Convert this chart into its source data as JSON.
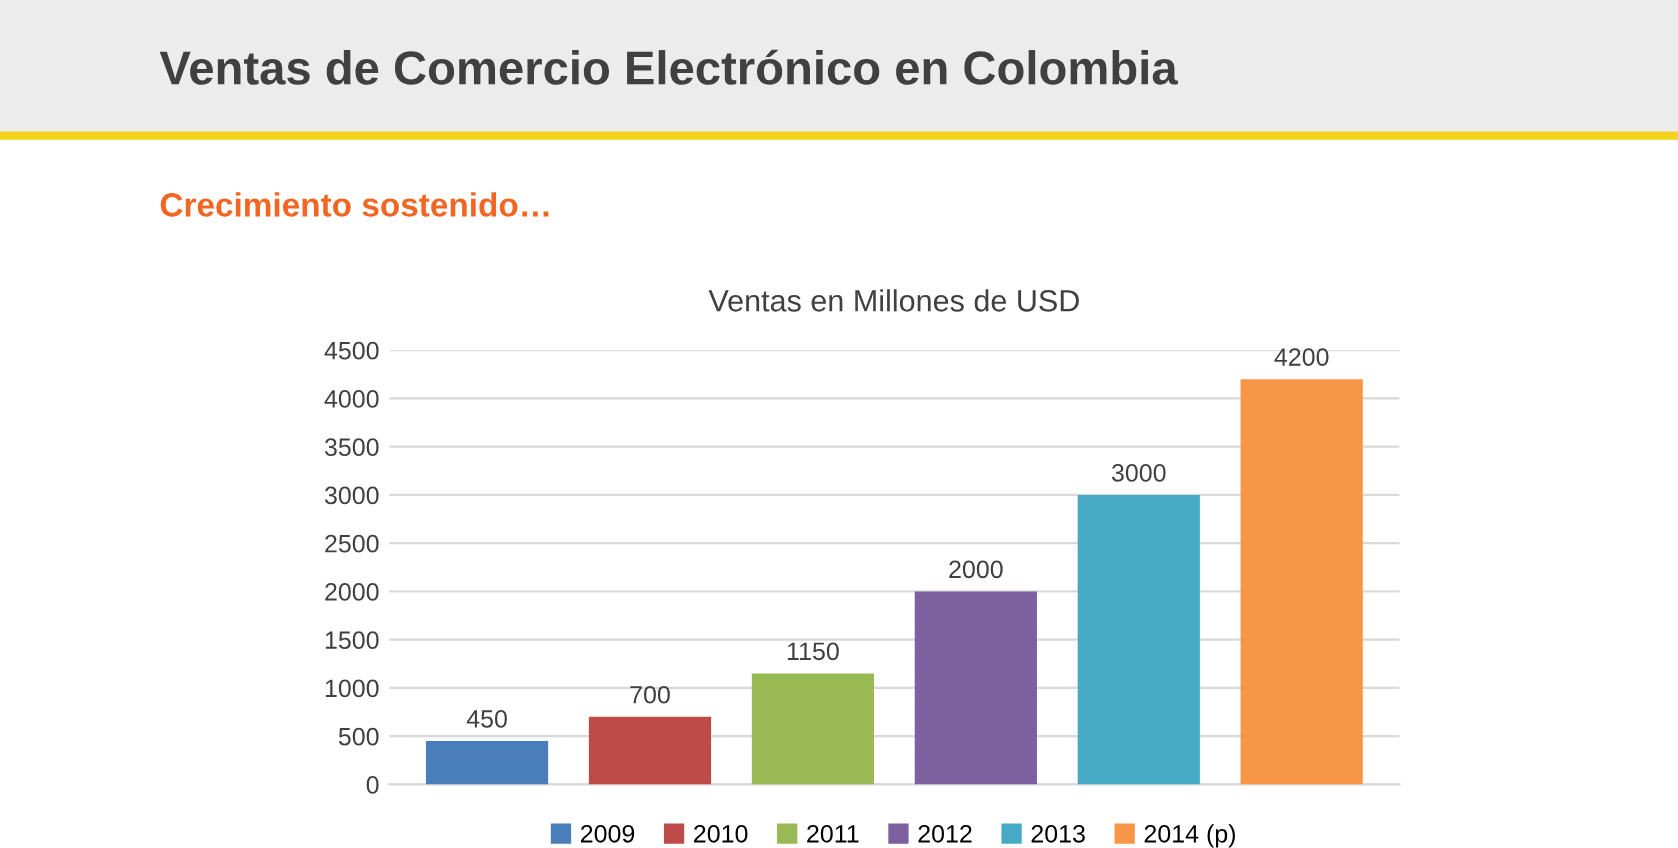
{
  "chart_data": {
    "type": "bar",
    "title": "Ventas en Millones de USD",
    "annotations": [
      "Ventas de Comercio Electrónico en Colombia",
      "Crecimiento sostenido…"
    ],
    "categories": [
      null,
      null,
      null,
      null,
      null,
      null
    ],
    "series": [
      {
        "name": "2009",
        "color": "#4a7ebb",
        "values": [
          450,
          null,
          null,
          null,
          null,
          null
        ]
      },
      {
        "name": "2010",
        "color": "#be4b48",
        "values": [
          null,
          700,
          null,
          null,
          null,
          null
        ]
      },
      {
        "name": "2011",
        "color": "#98b954",
        "values": [
          null,
          null,
          1150,
          null,
          null,
          null
        ]
      },
      {
        "name": "2012",
        "color": "#7d60a0",
        "values": [
          null,
          null,
          null,
          2000,
          null,
          null
        ]
      },
      {
        "name": "2013",
        "color": "#46aac5",
        "values": [
          null,
          null,
          null,
          null,
          3000,
          null
        ]
      },
      {
        "name": "2014 (p)",
        "color": "#f79646",
        "values": [
          null,
          null,
          null,
          null,
          null,
          4200
        ]
      }
    ],
    "ylim": [
      0,
      4500
    ],
    "yticks": [
      0,
      500,
      1000,
      1500,
      2000,
      2500,
      3000,
      3500,
      4000,
      4500
    ],
    "grid": "y",
    "legend": "bottom",
    "data_labels": true,
    "tick_labels": "y"
  }
}
